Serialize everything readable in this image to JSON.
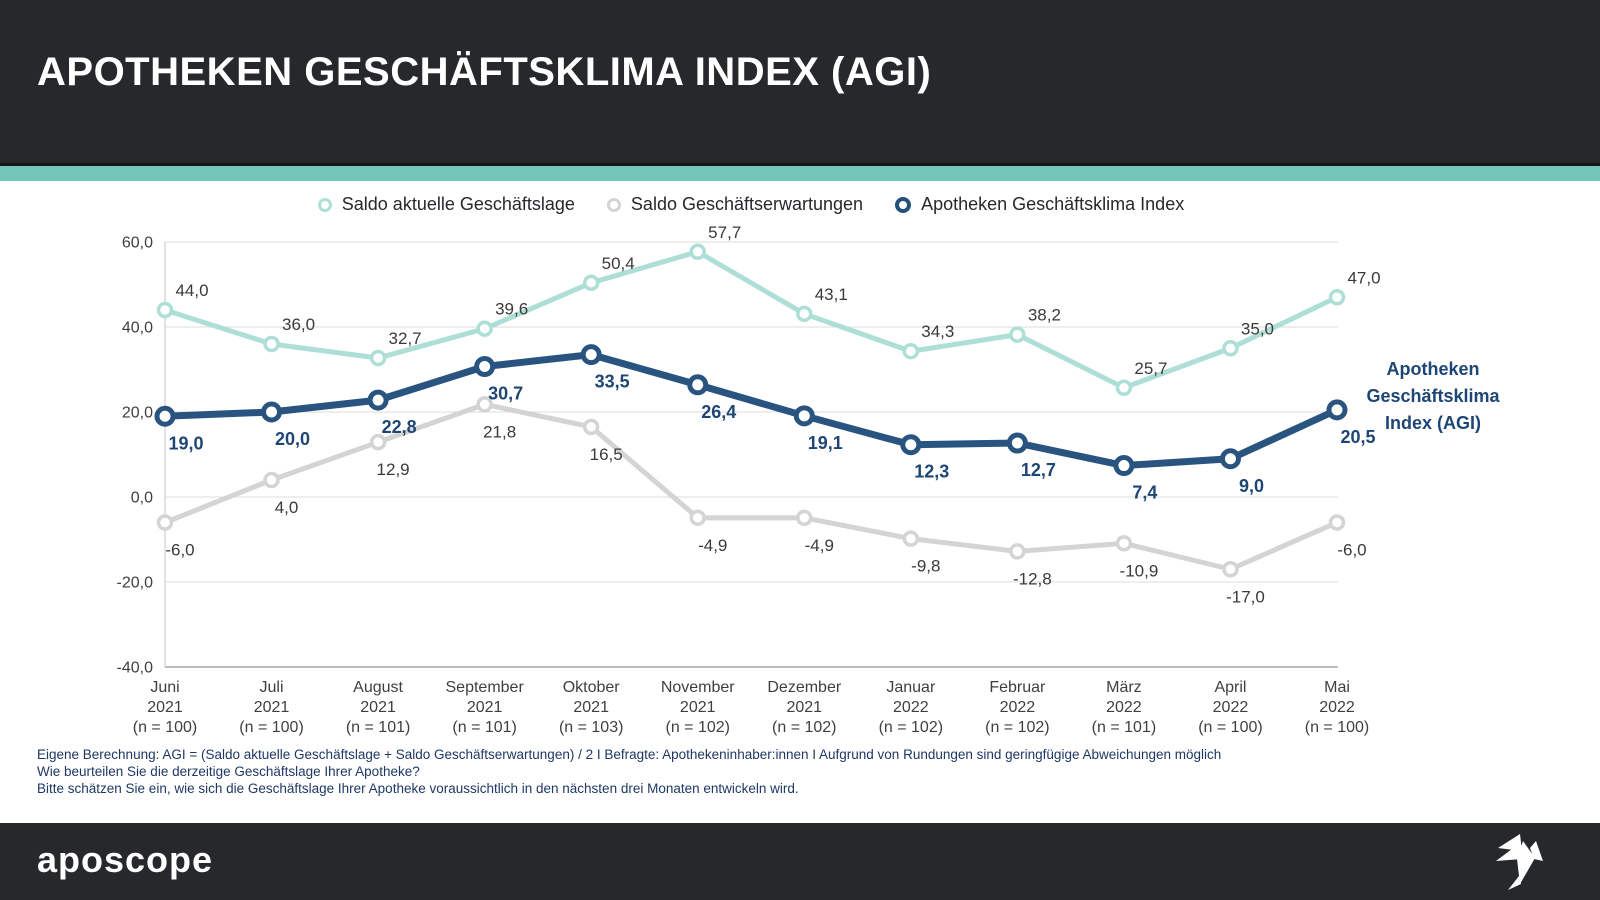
{
  "header": {
    "title": "APOTHEKEN GESCHÄFTSKLIMA INDEX (AGI)"
  },
  "legend": [
    {
      "label": "Saldo aktuelle Geschäftslage",
      "color": "#aedfd7"
    },
    {
      "label": "Saldo Geschäftserwartungen",
      "color": "#d4d4d4"
    },
    {
      "label": "Apotheken Geschäftsklima Index",
      "color": "#24507c"
    }
  ],
  "chart_data": {
    "type": "line",
    "title": "Apotheken Geschäftsklima Index (AGI)",
    "categories": [
      {
        "month": "Juni",
        "year": "2021",
        "n": "(n = 100)"
      },
      {
        "month": "Juli",
        "year": "2021",
        "n": "(n = 100)"
      },
      {
        "month": "August",
        "year": "2021",
        "n": "(n = 101)"
      },
      {
        "month": "September",
        "year": "2021",
        "n": "(n = 101)"
      },
      {
        "month": "Oktober",
        "year": "2021",
        "n": "(n = 103)"
      },
      {
        "month": "November",
        "year": "2021",
        "n": "(n = 102)"
      },
      {
        "month": "Dezember",
        "year": "2021",
        "n": "(n = 102)"
      },
      {
        "month": "Januar",
        "year": "2022",
        "n": "(n = 102)"
      },
      {
        "month": "Februar",
        "year": "2022",
        "n": "(n = 102)"
      },
      {
        "month": "März",
        "year": "2022",
        "n": "(n = 101)"
      },
      {
        "month": "April",
        "year": "2022",
        "n": "(n = 100)"
      },
      {
        "month": "Mai",
        "year": "2022",
        "n": "(n = 100)"
      }
    ],
    "series": [
      {
        "name": "Saldo aktuelle Geschäftslage",
        "color": "#aedfd7",
        "values": [
          44.0,
          36.0,
          32.7,
          39.6,
          50.4,
          57.7,
          43.1,
          34.3,
          38.2,
          25.7,
          35.0,
          47.0
        ]
      },
      {
        "name": "Saldo Geschäftserwartungen",
        "color": "#d4d4d4",
        "values": [
          -6.0,
          4.0,
          12.9,
          21.8,
          16.5,
          -4.9,
          -4.9,
          -9.8,
          -12.8,
          -10.9,
          -17.0,
          -6.0
        ]
      },
      {
        "name": "Apotheken Geschäftsklima Index",
        "color": "#2a5480",
        "values": [
          19.0,
          20.0,
          22.8,
          30.7,
          33.5,
          26.4,
          19.1,
          12.3,
          12.7,
          7.4,
          9.0,
          20.5
        ]
      }
    ],
    "ylim": [
      -40,
      60
    ],
    "yticks": [
      60,
      40,
      20,
      0,
      -20,
      -40
    ],
    "grid": true,
    "legend_position": "top",
    "decimal_format": "comma",
    "annotation": "Apotheken Geschäftsklima Index (AGI)"
  },
  "annotation": {
    "lines": [
      "Apotheken",
      "Geschäftsklima",
      "Index (AGI)"
    ]
  },
  "footnotes": [
    "Eigene Berechnung: AGI = (Saldo aktuelle Geschäftslage + Saldo Geschäftserwartungen) / 2 I Befragte: Apothekeninhaber:innen I Aufgrund von Rundungen sind geringfügige Abweichungen möglich",
    "Wie beurteilen Sie die derzeitige Geschäftslage Ihrer Apotheke?",
    "Bitte schätzen Sie ein, wie sich die Geschäftslage Ihrer Apotheke voraussichtlich in den nächsten drei Monaten entwickeln wird."
  ],
  "footer": {
    "logo_text": "aposcope",
    "logo_icon": "origami-crane-icon"
  },
  "colors": {
    "header_bg": "#27282c",
    "accent_band": "#72c5b7",
    "grid": "#dcdcdc",
    "axis": "#a6a6a6",
    "tick_text": "#3f3f3f",
    "label_text": "#3a3a3a",
    "navy_label": "#1e4675",
    "footnote_text": "#1f3864"
  }
}
